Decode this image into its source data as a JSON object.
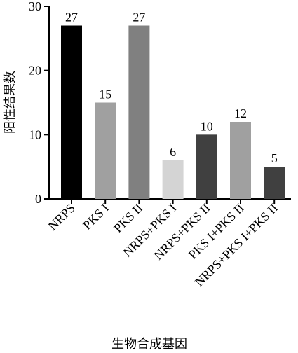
{
  "chart_data": {
    "type": "bar",
    "x_label": "生物合成基因",
    "y_label": "阳性结果数",
    "categories": [
      "NRPS",
      "PKS I",
      "PKS II",
      "NRPS+PKS I",
      "NRPS+PKS II",
      "PKS I+PKS II",
      "NRPS+PKS I+PKS II"
    ],
    "values": [
      27,
      15,
      27,
      6,
      10,
      12,
      5
    ],
    "colors": [
      "#000000",
      "#a0a0a0",
      "#808080",
      "#d4d4d4",
      "#404040",
      "#a0a0a0",
      "#404040"
    ],
    "ylim": [
      0,
      30
    ],
    "yticks": [
      0,
      10,
      20,
      30
    ]
  }
}
